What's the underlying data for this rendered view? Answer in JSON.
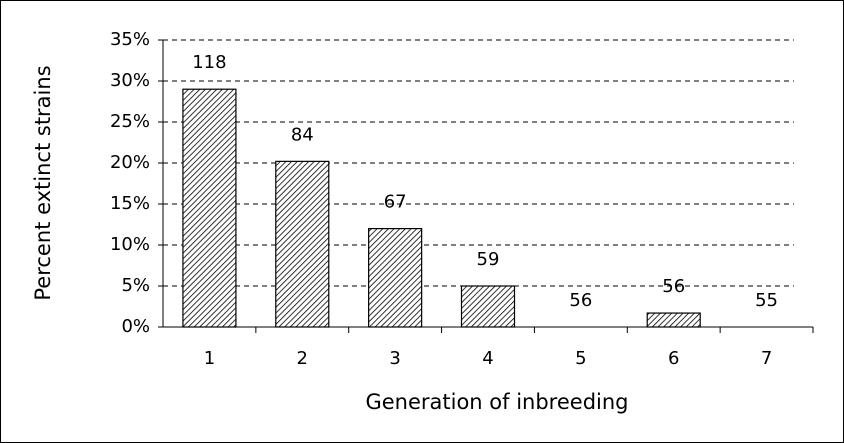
{
  "chart_data": {
    "type": "bar",
    "x_label": "Generation of inbreeding",
    "y_label": "Percent extinct strains",
    "categories": [
      "1",
      "2",
      "3",
      "4",
      "5",
      "6",
      "7"
    ],
    "values": [
      29,
      20.2,
      12,
      5,
      0,
      1.7,
      0
    ],
    "labels": [
      118,
      84,
      67,
      59,
      56,
      56,
      55
    ],
    "ylim": [
      0,
      35
    ],
    "yticks": [
      {
        "value": 0,
        "label": "0%"
      },
      {
        "value": 5,
        "label": "5%"
      },
      {
        "value": 10,
        "label": "10%"
      },
      {
        "value": 15,
        "label": "15%"
      },
      {
        "value": 20,
        "label": "20%"
      },
      {
        "value": 25,
        "label": "25%"
      },
      {
        "value": 30,
        "label": "30%"
      },
      {
        "value": 35,
        "label": "35%"
      }
    ],
    "grid": true
  }
}
